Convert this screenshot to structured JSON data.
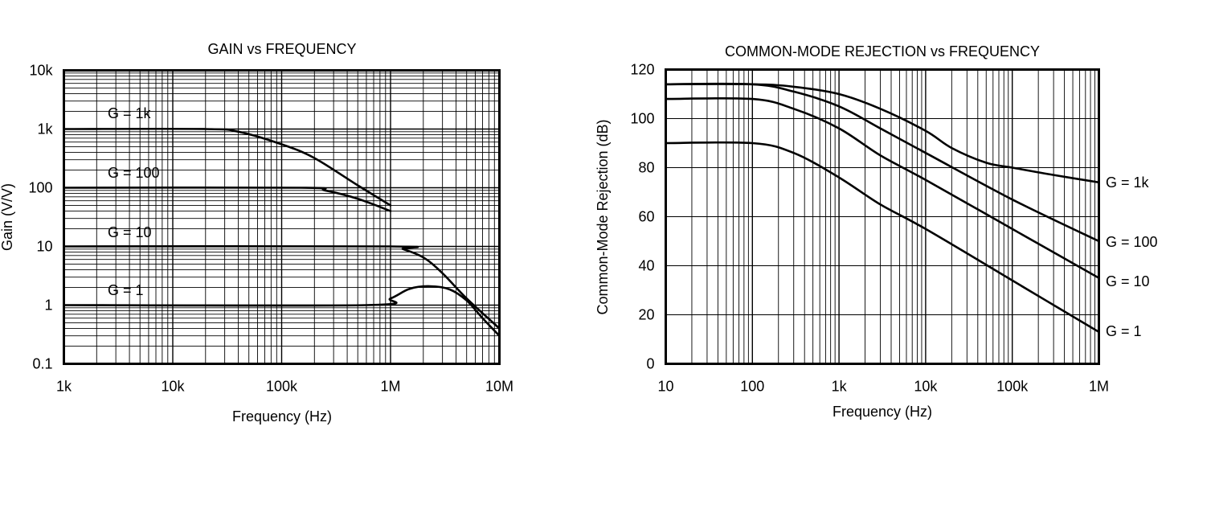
{
  "chart_data": [
    {
      "type": "line",
      "title": "GAIN vs FREQUENCY",
      "xlabel": "Frequency (Hz)",
      "ylabel": "Gain (V/V)",
      "x_scale": "log",
      "y_scale": "log",
      "xlim": [
        1000,
        10000000
      ],
      "ylim": [
        0.1,
        10000
      ],
      "x_ticks": [
        1000,
        10000,
        100000,
        1000000,
        10000000
      ],
      "x_tick_labels": [
        "1k",
        "10k",
        "100k",
        "1M",
        "10M"
      ],
      "y_ticks": [
        0.1,
        1,
        10,
        100,
        1000,
        10000
      ],
      "y_tick_labels": [
        "0.1",
        "1",
        "10",
        "100",
        "1k",
        "10k"
      ],
      "grid": true,
      "series": [
        {
          "name": "G = 1k",
          "x": [
            1000,
            20000,
            40000,
            100000,
            200000,
            500000,
            1000000
          ],
          "y": [
            1000,
            1000,
            900,
            550,
            320,
            110,
            50
          ]
        },
        {
          "name": "G = 100",
          "x": [
            1000,
            150000,
            250000,
            500000,
            1000000
          ],
          "y": [
            100,
            100,
            90,
            65,
            40
          ]
        },
        {
          "name": "G = 10",
          "x": [
            1000,
            1000000,
            1300000,
            2000000,
            3000000,
            5000000,
            10000000
          ],
          "y": [
            10,
            10,
            9,
            6.5,
            3.5,
            1.3,
            0.4
          ]
        },
        {
          "name": "G = 1",
          "x": [
            1000,
            600000,
            1000000,
            1500000,
            2300000,
            3500000,
            5000000,
            7000000,
            10000000
          ],
          "y": [
            1,
            1,
            1.3,
            1.9,
            2.1,
            1.85,
            1.2,
            0.6,
            0.3
          ]
        }
      ]
    },
    {
      "type": "line",
      "title": "COMMON-MODE REJECTION vs FREQUENCY",
      "xlabel": "Frequency (Hz)",
      "ylabel": "Common-Mode Rejection (dB)",
      "x_scale": "log",
      "y_scale": "linear",
      "xlim": [
        10,
        1000000
      ],
      "ylim": [
        0,
        120
      ],
      "x_ticks": [
        10,
        100,
        1000,
        10000,
        100000,
        1000000
      ],
      "x_tick_labels": [
        "10",
        "100",
        "1k",
        "10k",
        "100k",
        "1M"
      ],
      "y_ticks": [
        0,
        20,
        40,
        60,
        80,
        100,
        120
      ],
      "y_tick_labels": [
        "0",
        "20",
        "40",
        "60",
        "80",
        "100",
        "120"
      ],
      "grid": true,
      "series": [
        {
          "name": "G = 1k",
          "x": [
            10,
            100,
            300,
            1000,
            3000,
            10000,
            20000,
            50000,
            100000,
            300000,
            1000000
          ],
          "y": [
            114,
            114,
            113,
            110,
            104,
            95,
            88,
            82,
            80,
            77,
            74
          ]
        },
        {
          "name": "G = 100",
          "x": [
            10,
            100,
            300,
            1000,
            3000,
            10000,
            100000,
            1000000
          ],
          "y": [
            114,
            114,
            111,
            105,
            96,
            86,
            67,
            50
          ]
        },
        {
          "name": "G = 10",
          "x": [
            10,
            100,
            300,
            1000,
            3000,
            10000,
            100000,
            1000000
          ],
          "y": [
            108,
            108,
            104,
            96,
            85,
            75,
            55,
            35
          ]
        },
        {
          "name": "G = 1",
          "x": [
            10,
            100,
            300,
            1000,
            3000,
            10000,
            100000,
            1000000
          ],
          "y": [
            90,
            90,
            86,
            76,
            65,
            55,
            34,
            13
          ]
        }
      ]
    }
  ]
}
